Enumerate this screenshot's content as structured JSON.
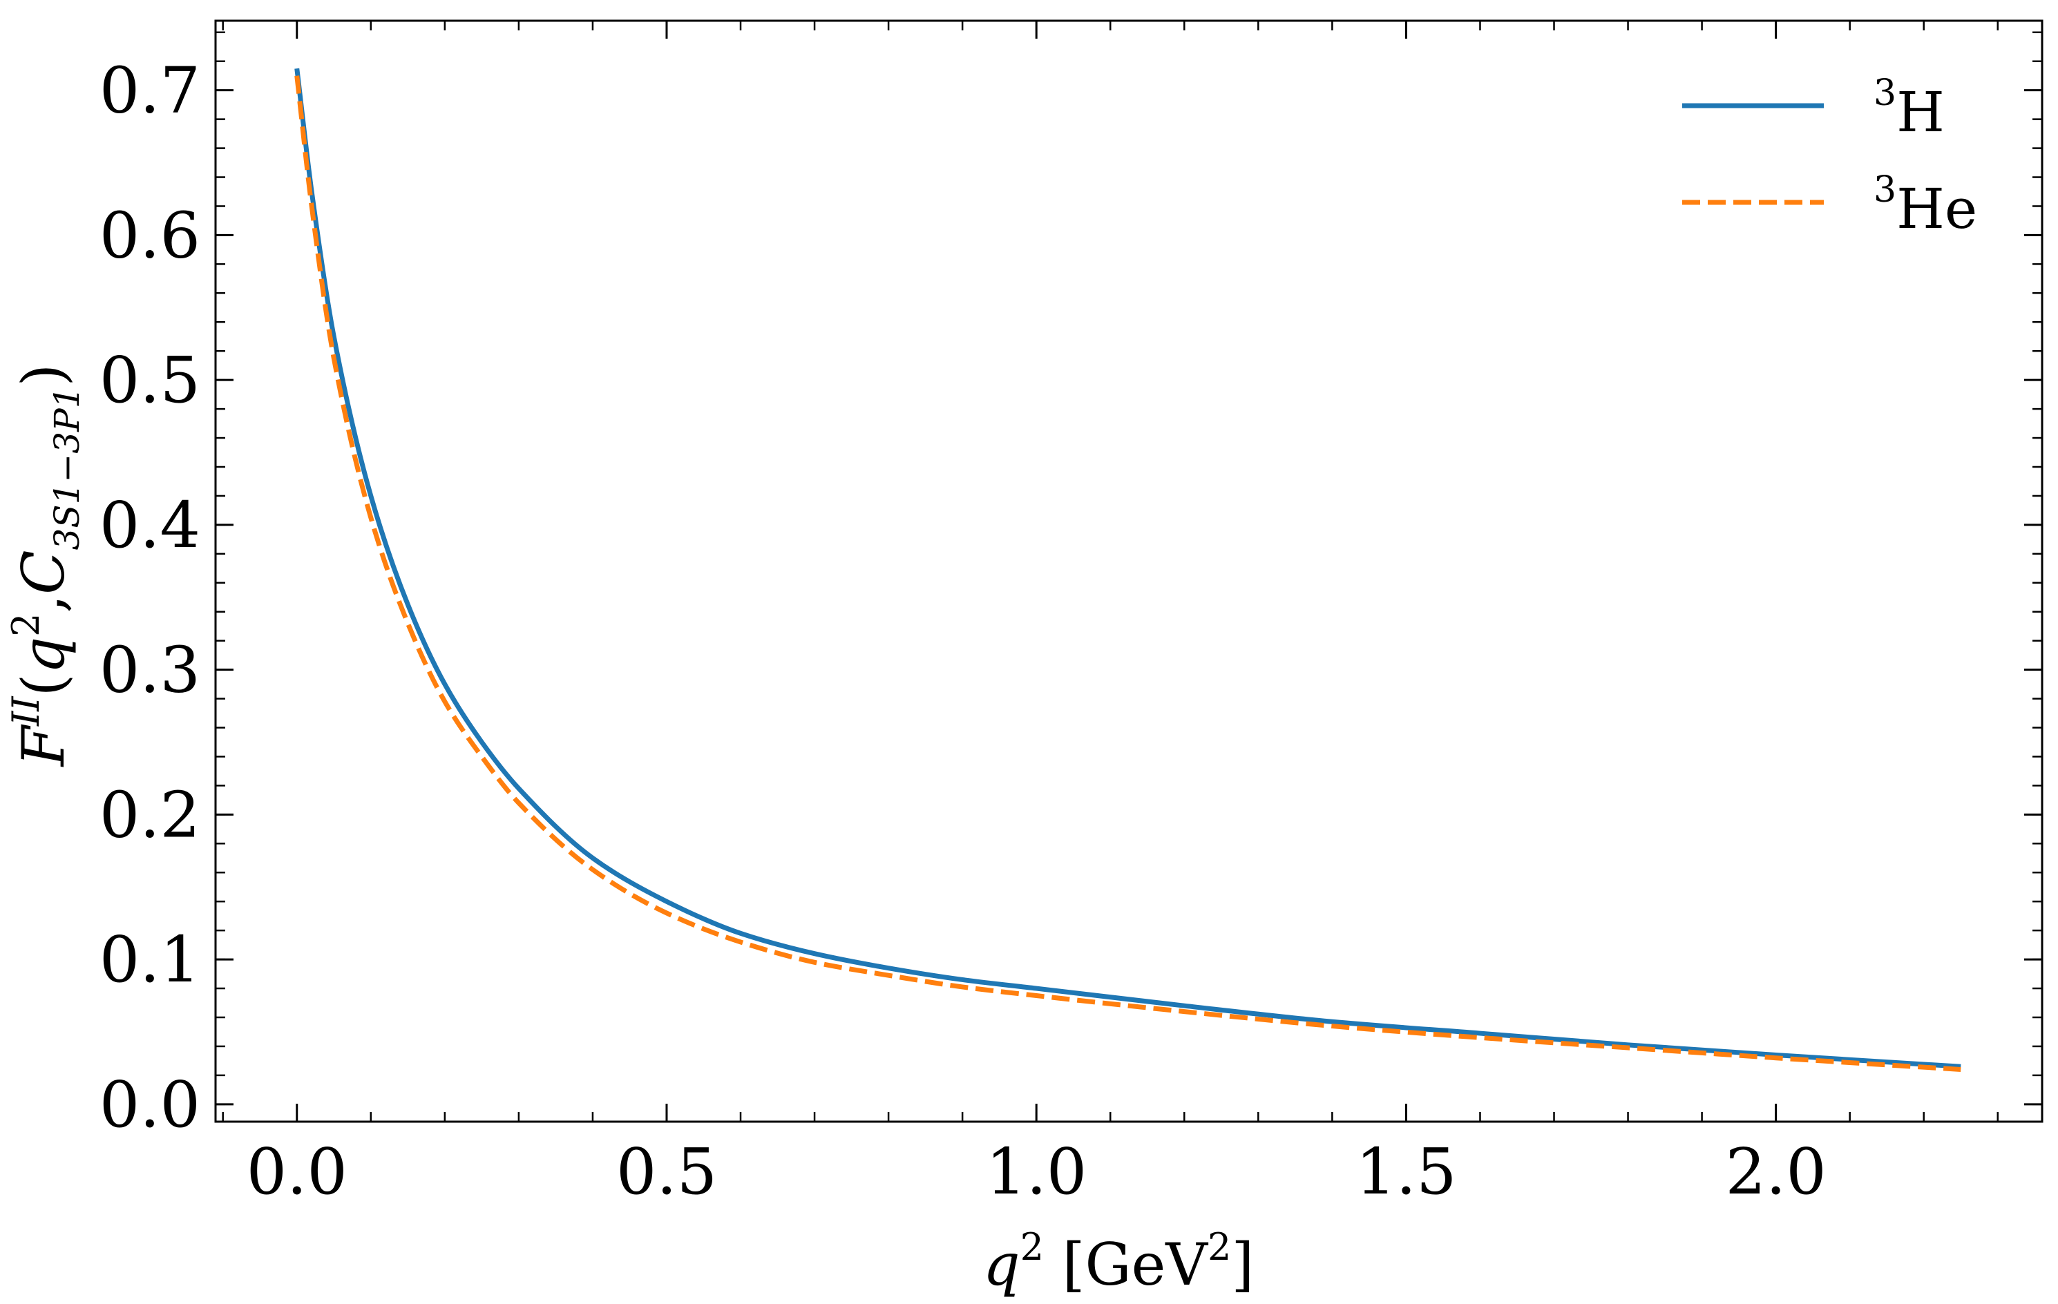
{
  "chart_data": {
    "type": "line",
    "title": "",
    "xlabel": {
      "var": "q",
      "var_sup": "2",
      "unit_open": " [GeV",
      "unit_sup": "2",
      "unit_close": "]"
    },
    "ylabel": {
      "F": "F",
      "F_sup": "II",
      "open": "(",
      "q": "q",
      "q_sup": "2",
      "comma": ",",
      "C": "C",
      "C_sub": "3S1−3P1",
      "close": ")"
    },
    "xlim": [
      -0.11,
      2.36
    ],
    "ylim": [
      -0.012,
      0.748
    ],
    "x_ticks": [
      "0.0",
      "0.5",
      "1.0",
      "1.5",
      "2.0"
    ],
    "x_tick_values": [
      0.0,
      0.5,
      1.0,
      1.5,
      2.0
    ],
    "y_ticks": [
      "0.0",
      "0.1",
      "0.2",
      "0.3",
      "0.4",
      "0.5",
      "0.6",
      "0.7"
    ],
    "y_tick_values": [
      0.0,
      0.1,
      0.2,
      0.3,
      0.4,
      0.5,
      0.6,
      0.7
    ],
    "x_minor_step": 0.1,
    "y_minor_step": 0.02,
    "grid": false,
    "legend_position": "top-right",
    "series": [
      {
        "name": "³H",
        "name_sup": "3",
        "name_base": "H",
        "color": "#1f77b4",
        "style": "solid",
        "x": [
          0.0,
          0.02,
          0.05,
          0.1,
          0.15,
          0.2,
          0.25,
          0.3,
          0.4,
          0.5,
          0.6,
          0.7,
          0.8,
          0.9,
          1.0,
          1.2,
          1.4,
          1.6,
          1.8,
          2.0,
          2.25
        ],
        "y": [
          0.715,
          0.63,
          0.53,
          0.42,
          0.345,
          0.29,
          0.25,
          0.218,
          0.17,
          0.14,
          0.118,
          0.104,
          0.094,
          0.086,
          0.08,
          0.068,
          0.057,
          0.049,
          0.041,
          0.034,
          0.026
        ]
      },
      {
        "name": "³He",
        "name_sup": "3",
        "name_base": "He",
        "color": "#ff7f0e",
        "style": "dashed",
        "x": [
          0.0,
          0.02,
          0.05,
          0.1,
          0.15,
          0.2,
          0.25,
          0.3,
          0.4,
          0.5,
          0.6,
          0.7,
          0.8,
          0.9,
          1.0,
          1.2,
          1.4,
          1.6,
          1.8,
          2.0,
          2.25
        ],
        "y": [
          0.71,
          0.62,
          0.515,
          0.405,
          0.332,
          0.278,
          0.24,
          0.208,
          0.162,
          0.132,
          0.112,
          0.098,
          0.089,
          0.081,
          0.075,
          0.064,
          0.054,
          0.046,
          0.039,
          0.032,
          0.024
        ]
      }
    ]
  }
}
